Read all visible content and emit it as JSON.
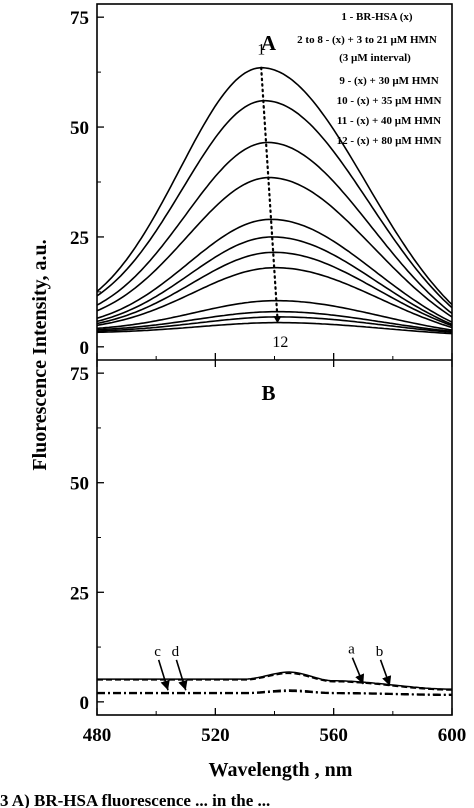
{
  "caption_fragment": "3 A) BR-HSA fluorescence ... in the ...",
  "chart_data": {
    "type": "line",
    "xlabel": "Wavelength , nm",
    "ylabel": "Fluorescence Intensity, a.u.",
    "xlim": [
      480,
      600
    ],
    "x_ticks": [
      480,
      520,
      560,
      600
    ],
    "panels": [
      {
        "panel_label": "A",
        "ylim": [
          -3,
          78
        ],
        "y_ticks": [
          0,
          25,
          50,
          75
        ],
        "legend_position": "top-right",
        "legend": [
          "1 - BR-HSA (x)",
          "2 to 8 - (x) + 3 to 21 µM HMN",
          "(3 µM interval)",
          "9 - (x) + 30 µM HMN",
          "10 - (x) + 35 µM HMN",
          "11 - (x) + 40 µM HMN",
          "12 - (x) + 80 µM HMN"
        ],
        "annotations": [
          {
            "text": "1",
            "x": 535.5,
            "y": 66.5
          },
          {
            "text": "12",
            "x": 542.0,
            "y": 0.0
          }
        ],
        "peak_marker": {
          "style": "dotted",
          "points": [
            [
              535.5,
              63.5
            ],
            [
              541.0,
              6.5
            ]
          ]
        },
        "series_shape": {
          "peak_wavelength": 536,
          "left_sigma": 28,
          "right_sigma": 35,
          "baseline_slope": 0.004
        },
        "series": [
          {
            "values": [
              [
                480,
                12.6
              ],
              [
                536,
                63.5
              ],
              [
                600,
                9.6
              ]
            ]
          },
          {
            "values": [
              [
                480,
                11.6
              ],
              [
                537,
                56.0
              ],
              [
                600,
                8.9
              ]
            ]
          },
          {
            "values": [
              [
                480,
                9.5
              ],
              [
                538,
                46.5
              ],
              [
                600,
                7.6
              ]
            ]
          },
          {
            "values": [
              [
                480,
                8.2
              ],
              [
                538.5,
                38.5
              ],
              [
                600,
                6.8
              ]
            ]
          },
          {
            "values": [
              [
                480,
                6.5
              ],
              [
                539,
                29.0
              ],
              [
                600,
                5.6
              ]
            ]
          },
          {
            "values": [
              [
                480,
                5.8
              ],
              [
                539.5,
                25.0
              ],
              [
                600,
                5.1
              ]
            ]
          },
          {
            "values": [
              [
                480,
                5.3
              ],
              [
                540,
                21.5
              ],
              [
                600,
                4.8
              ]
            ]
          },
          {
            "values": [
              [
                480,
                4.9
              ],
              [
                540.5,
                18.0
              ],
              [
                600,
                4.4
              ]
            ]
          },
          {
            "values": [
              [
                480,
                4.2
              ],
              [
                541,
                10.5
              ],
              [
                600,
                3.8
              ]
            ]
          },
          {
            "values": [
              [
                480,
                3.9
              ],
              [
                541.5,
                8.0
              ],
              [
                600,
                3.5
              ]
            ]
          },
          {
            "values": [
              [
                480,
                3.6
              ],
              [
                542,
                6.8
              ],
              [
                600,
                3.3
              ]
            ]
          },
          {
            "values": [
              [
                480,
                3.3
              ],
              [
                542,
                5.5
              ],
              [
                600,
                3.0
              ]
            ]
          }
        ]
      },
      {
        "panel_label": "B",
        "ylim": [
          -3,
          78
        ],
        "y_ticks": [
          0,
          25,
          50,
          75
        ],
        "annotations": [
          {
            "text": "c",
            "x": 500.5,
            "y": 10.5,
            "arrow_to": [
              504,
              2.2
            ]
          },
          {
            "text": "d",
            "x": 506.5,
            "y": 10.5,
            "arrow_to": [
              510,
              2.2
            ]
          },
          {
            "text": "a",
            "x": 566.0,
            "y": 11.0,
            "arrow_to": [
              570,
              3.6
            ]
          },
          {
            "text": "b",
            "x": 575.5,
            "y": 10.5,
            "arrow_to": [
              579,
              3.2
            ]
          }
        ],
        "series": [
          {
            "name": "a",
            "style": "solid",
            "values": [
              [
                480,
                5.2
              ],
              [
                530,
                5.2
              ],
              [
                545,
                6.8
              ],
              [
                560,
                4.8
              ],
              [
                600,
                2.9
              ]
            ]
          },
          {
            "name": "b",
            "style": "dashed",
            "values": [
              [
                480,
                5.0
              ],
              [
                530,
                5.0
              ],
              [
                545,
                6.5
              ],
              [
                560,
                4.6
              ],
              [
                600,
                2.7
              ]
            ]
          },
          {
            "name": "c",
            "style": "dash-dot",
            "values": [
              [
                480,
                2.1
              ],
              [
                530,
                2.1
              ],
              [
                545,
                2.7
              ],
              [
                560,
                2.1
              ],
              [
                600,
                1.7
              ]
            ]
          },
          {
            "name": "d",
            "style": "dash-dot",
            "values": [
              [
                480,
                1.9
              ],
              [
                530,
                1.9
              ],
              [
                545,
                2.4
              ],
              [
                560,
                1.9
              ],
              [
                600,
                1.5
              ]
            ]
          }
        ]
      }
    ]
  }
}
